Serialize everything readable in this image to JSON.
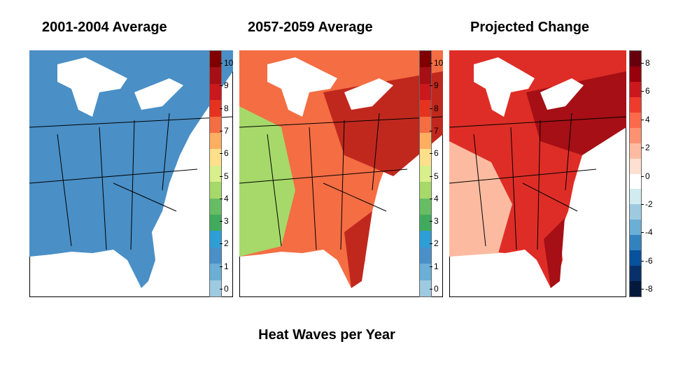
{
  "panels": [
    {
      "title": "2001-2004 Average",
      "scale_colors": [
        "#800000",
        "#a50f15",
        "#cb181d",
        "#e6331f",
        "#f46d43",
        "#fdae61",
        "#fee08b",
        "#d9ef8b",
        "#a6d96a",
        "#66bd63",
        "#41ab5d",
        "#2e9ed6",
        "#4a90c8",
        "#6baed6",
        "#9ecae1"
      ],
      "ticks": [
        "10",
        "9",
        "8",
        "7",
        "6",
        "5",
        "4",
        "3",
        "2",
        "1",
        "0"
      ]
    },
    {
      "title": "2057-2059 Average",
      "scale_colors": [
        "#800000",
        "#a50f15",
        "#cb181d",
        "#e6331f",
        "#f46d43",
        "#fdae61",
        "#fee08b",
        "#d9ef8b",
        "#a6d96a",
        "#66bd63",
        "#41ab5d",
        "#2e9ed6",
        "#4a90c8",
        "#6baed6",
        "#9ecae1"
      ],
      "ticks": [
        "10",
        "9",
        "8",
        "7",
        "6",
        "5",
        "4",
        "3",
        "2",
        "1",
        "0"
      ]
    },
    {
      "title": "Projected Change",
      "scale_colors": [
        "#67000d",
        "#99000d",
        "#cb181d",
        "#ef3b2c",
        "#fb6a4a",
        "#fc9272",
        "#fcbba1",
        "#fee0d2",
        "#ffffff",
        "#d1ecf0",
        "#9ecae1",
        "#6baed6",
        "#3182bd",
        "#08519c",
        "#08306b",
        "#041a3d"
      ],
      "ticks": [
        "8",
        "6",
        "4",
        "2",
        "0",
        "-2",
        "-4",
        "-6",
        "-8"
      ]
    }
  ],
  "map_colors": {
    "baseline": "#4a8fc6",
    "future_hot": "#d7301f",
    "future_warm": "#f46d43",
    "future_mild": "#a6d96a",
    "change_hot": "#de2d26",
    "change_dark": "#a50f15",
    "change_light": "#fcbba1",
    "water": "#ffffff",
    "border": "#000000"
  },
  "footer": "Heat Waves per Year"
}
